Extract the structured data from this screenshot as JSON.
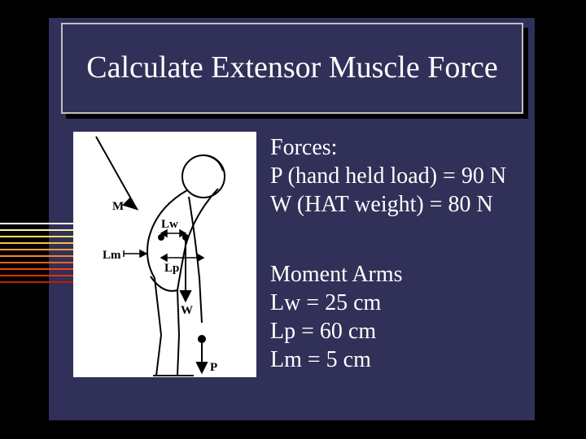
{
  "title": "Calculate Extensor Muscle Force",
  "forces": {
    "heading": "Forces:",
    "p_line": "P (hand held load) = 90 N",
    "w_line": "W (HAT weight) = 80 N"
  },
  "moments": {
    "heading": "Moment Arms",
    "lw": "Lw = 25 cm",
    "lp": "Lp =  60 cm",
    "lm": "Lm = 5 cm"
  },
  "diagram": {
    "labels": {
      "M": "M",
      "Lw": "Lw",
      "Lm": "Lm",
      "Lp": "Lp",
      "W": "W",
      "P": "P"
    },
    "colors": {
      "stroke": "#000000",
      "bg": "#ffffff",
      "label": "#000000"
    }
  },
  "colors": {
    "slide_bg": "#303058",
    "page_bg": "#000000",
    "text": "#ffffff",
    "border": "#c0c0c0"
  },
  "decor_line_colors": [
    "#ffffff",
    "#fff0a0",
    "#ffe060",
    "#ffc040",
    "#ffa030",
    "#ff8020",
    "#ff6018",
    "#ff4010",
    "#e03008",
    "#c02000"
  ]
}
